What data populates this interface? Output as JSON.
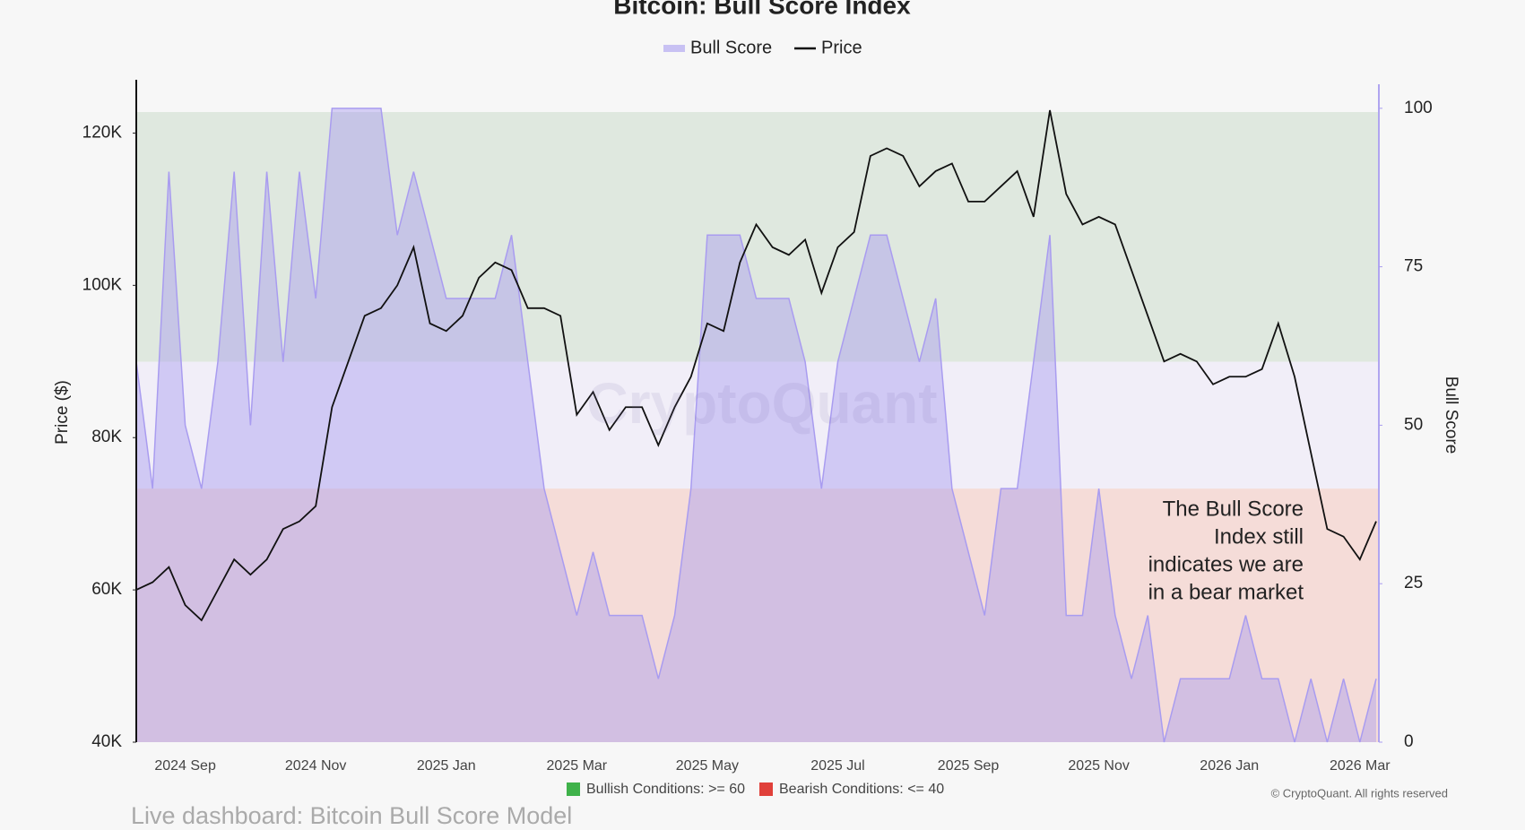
{
  "chart_data": {
    "type": "line",
    "title": "Bitcoin: Bull Score Index",
    "y_label": "Price ($)",
    "y2_label": "Bull Score",
    "watermark": "CryptoQuant",
    "annotation": [
      "The Bull Score",
      "Index still",
      "indicates we are",
      "in a bear market"
    ],
    "copyright": "© CryptoQuant. All rights reserved",
    "caption": "Live dashboard: Bitcoin Bull Score Model",
    "conditions": [
      {
        "label": "Bullish Conditions: >= 60",
        "value": 60,
        "color": "#3fb24a",
        "band_color": "#dfe8df"
      },
      {
        "label": "Bearish Conditions: <= 40",
        "value": 40,
        "color": "#e0403a",
        "band_color": "#f5dcd8"
      }
    ],
    "categories": [
      null,
      null,
      null,
      "2024 Sep",
      null,
      null,
      null,
      null,
      null,
      null,
      null,
      "2024 Nov",
      null,
      null,
      null,
      null,
      null,
      null,
      null,
      "2025 Jan",
      null,
      null,
      null,
      null,
      null,
      null,
      null,
      "2025 Mar",
      null,
      null,
      null,
      null,
      null,
      null,
      null,
      "2025 May",
      null,
      null,
      null,
      null,
      null,
      null,
      null,
      "2025 Jul",
      null,
      null,
      null,
      null,
      null,
      null,
      null,
      "2025 Sep",
      null,
      null,
      null,
      null,
      null,
      null,
      null,
      "2025 Nov",
      null,
      null,
      null,
      null,
      null,
      null,
      null,
      "2026 Jan",
      null,
      null,
      null,
      null,
      null,
      null,
      null,
      "2026 Mar",
      null
    ],
    "series": [
      {
        "name": "Bull Score",
        "color": "#a99cf0",
        "axis": "y2",
        "kind": "area",
        "values": [
          60,
          40,
          90,
          50,
          40,
          60,
          90,
          50,
          90,
          60,
          90,
          70,
          100,
          100,
          100,
          100,
          80,
          90,
          80,
          70,
          70,
          70,
          70,
          80,
          60,
          40,
          30,
          20,
          30,
          20,
          20,
          20,
          10,
          20,
          40,
          80,
          80,
          80,
          70,
          70,
          70,
          60,
          40,
          60,
          70,
          80,
          80,
          70,
          60,
          70,
          40,
          30,
          20,
          40,
          40,
          60,
          80,
          20,
          20,
          40,
          20,
          10,
          20,
          0,
          10,
          10,
          10,
          10,
          20,
          10,
          10,
          0,
          10,
          0,
          10,
          0,
          10
        ]
      },
      {
        "name": "Price",
        "color": "#111111",
        "axis": "y",
        "kind": "line",
        "values": [
          60000,
          61000,
          63000,
          58000,
          56000,
          60000,
          64000,
          62000,
          64000,
          68000,
          69000,
          71000,
          84000,
          90000,
          96000,
          97000,
          100000,
          105000,
          95000,
          94000,
          96000,
          101000,
          103000,
          102000,
          97000,
          97000,
          96000,
          83000,
          86000,
          81000,
          84000,
          84000,
          79000,
          84000,
          88000,
          95000,
          94000,
          103000,
          108000,
          105000,
          104000,
          106000,
          99000,
          105000,
          107000,
          117000,
          118000,
          117000,
          113000,
          115000,
          116000,
          111000,
          111000,
          113000,
          115000,
          109000,
          123000,
          112000,
          108000,
          109000,
          108000,
          102000,
          96000,
          90000,
          91000,
          90000,
          87000,
          88000,
          88000,
          89000,
          95000,
          88000,
          78000,
          68000,
          67000,
          64000,
          69000
        ]
      }
    ],
    "ylim": [
      40000,
      127000
    ],
    "yticks": [
      {
        "value": 40000,
        "label": "40K"
      },
      {
        "value": 60000,
        "label": "60K"
      },
      {
        "value": 80000,
        "label": "80K"
      },
      {
        "value": 100000,
        "label": "100K"
      },
      {
        "value": 120000,
        "label": "120K"
      }
    ],
    "y2lim": [
      0,
      104.5
    ],
    "y2ticks": [
      0,
      25,
      50,
      75,
      100
    ]
  }
}
